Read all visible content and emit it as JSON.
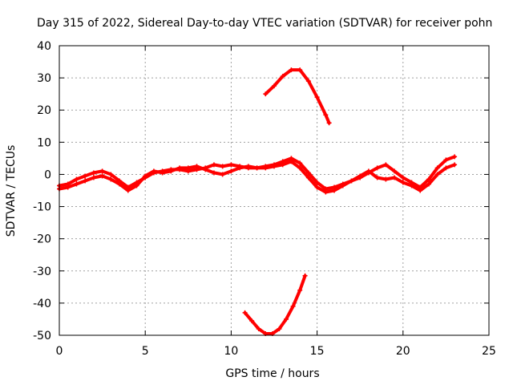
{
  "chart_data": {
    "type": "scatter",
    "title": "Day 315 of 2022, Sidereal Day-to-day VTEC variation (SDTVAR) for receiver pohn",
    "xlabel": "GPS time / hours",
    "ylabel": "SDTVAR / TECUs",
    "xlim": [
      0,
      25
    ],
    "ylim": [
      -50,
      40
    ],
    "xticks": [
      0,
      5,
      10,
      15,
      20,
      25
    ],
    "yticks": [
      -50,
      -40,
      -30,
      -20,
      -10,
      0,
      10,
      20,
      30,
      40
    ],
    "grid": true,
    "series_color": "#ff0000",
    "series": [
      {
        "name": "trace-main-a",
        "points": [
          [
            0.0,
            -3.5
          ],
          [
            0.5,
            -3.0
          ],
          [
            1.0,
            -1.5
          ],
          [
            1.5,
            -0.5
          ],
          [
            2.0,
            0.5
          ],
          [
            2.5,
            1.0
          ],
          [
            3.0,
            0.0
          ],
          [
            3.5,
            -2.0
          ],
          [
            4.0,
            -4.0
          ],
          [
            4.5,
            -2.5
          ],
          [
            5.0,
            -1.0
          ],
          [
            5.5,
            0.5
          ],
          [
            6.0,
            1.0
          ],
          [
            6.5,
            1.5
          ],
          [
            7.0,
            1.5
          ],
          [
            7.5,
            1.0
          ],
          [
            8.0,
            1.5
          ],
          [
            8.5,
            2.0
          ],
          [
            9.0,
            3.0
          ],
          [
            9.5,
            2.5
          ],
          [
            10.0,
            3.0
          ],
          [
            10.5,
            2.5
          ],
          [
            11.0,
            2.0
          ],
          [
            11.5,
            2.0
          ],
          [
            12.0,
            2.5
          ],
          [
            12.5,
            3.0
          ],
          [
            13.0,
            4.0
          ],
          [
            13.5,
            5.0
          ],
          [
            14.0,
            3.5
          ],
          [
            14.5,
            0.5
          ],
          [
            15.0,
            -2.5
          ],
          [
            15.5,
            -4.5
          ],
          [
            16.0,
            -4.0
          ],
          [
            16.5,
            -3.0
          ],
          [
            17.0,
            -2.0
          ],
          [
            17.5,
            -1.0
          ],
          [
            18.0,
            0.5
          ],
          [
            18.5,
            2.0
          ],
          [
            19.0,
            3.0
          ],
          [
            19.5,
            1.0
          ],
          [
            20.0,
            -1.0
          ],
          [
            20.5,
            -2.5
          ],
          [
            21.0,
            -4.0
          ],
          [
            21.5,
            -1.5
          ],
          [
            22.0,
            2.0
          ],
          [
            22.5,
            4.5
          ],
          [
            23.0,
            5.5
          ]
        ]
      },
      {
        "name": "trace-main-b",
        "points": [
          [
            0.0,
            -4.5
          ],
          [
            0.5,
            -4.0
          ],
          [
            1.0,
            -3.0
          ],
          [
            1.5,
            -2.0
          ],
          [
            2.0,
            -1.0
          ],
          [
            2.5,
            -0.5
          ],
          [
            3.0,
            -1.5
          ],
          [
            3.5,
            -3.0
          ],
          [
            4.0,
            -5.0
          ],
          [
            4.5,
            -3.5
          ],
          [
            5.0,
            -0.5
          ],
          [
            5.5,
            1.0
          ],
          [
            6.0,
            0.5
          ],
          [
            6.5,
            1.0
          ],
          [
            7.0,
            2.0
          ],
          [
            7.5,
            2.0
          ],
          [
            8.0,
            2.5
          ],
          [
            8.5,
            1.5
          ],
          [
            9.0,
            0.5
          ],
          [
            9.5,
            0.0
          ],
          [
            10.0,
            1.0
          ],
          [
            10.5,
            2.0
          ],
          [
            11.0,
            2.5
          ],
          [
            11.5,
            2.0
          ],
          [
            12.0,
            2.0
          ],
          [
            12.5,
            2.5
          ],
          [
            13.0,
            3.0
          ],
          [
            13.5,
            4.0
          ],
          [
            14.0,
            2.0
          ],
          [
            14.5,
            -1.0
          ],
          [
            15.0,
            -4.0
          ],
          [
            15.5,
            -5.5
          ],
          [
            16.0,
            -5.0
          ],
          [
            16.5,
            -3.5
          ],
          [
            17.0,
            -2.0
          ],
          [
            17.5,
            -0.5
          ],
          [
            18.0,
            1.0
          ],
          [
            18.5,
            -1.0
          ],
          [
            19.0,
            -1.5
          ],
          [
            19.5,
            -1.0
          ],
          [
            20.0,
            -2.5
          ],
          [
            20.5,
            -3.5
          ],
          [
            21.0,
            -5.0
          ],
          [
            21.5,
            -3.0
          ],
          [
            22.0,
            0.0
          ],
          [
            22.5,
            2.0
          ],
          [
            23.0,
            3.0
          ]
        ]
      },
      {
        "name": "trace-upper-arc",
        "points": [
          [
            12.0,
            25.0
          ],
          [
            12.5,
            27.5
          ],
          [
            13.0,
            30.5
          ],
          [
            13.5,
            32.5
          ],
          [
            14.0,
            32.5
          ],
          [
            14.5,
            29.0
          ],
          [
            15.0,
            24.0
          ],
          [
            15.5,
            18.5
          ],
          [
            15.7,
            16.0
          ]
        ]
      },
      {
        "name": "trace-lower-arc",
        "points": [
          [
            10.8,
            -43.0
          ],
          [
            11.2,
            -45.5
          ],
          [
            11.6,
            -48.0
          ],
          [
            12.0,
            -49.5
          ],
          [
            12.4,
            -49.5
          ],
          [
            12.8,
            -48.0
          ],
          [
            13.2,
            -45.0
          ],
          [
            13.6,
            -41.0
          ],
          [
            14.0,
            -36.0
          ],
          [
            14.3,
            -31.5
          ]
        ]
      }
    ]
  }
}
